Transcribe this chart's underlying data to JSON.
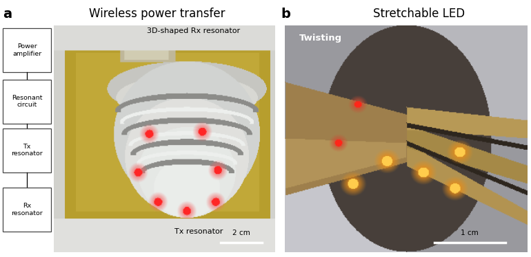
{
  "panel_a_title": "Wireless power transfer",
  "panel_b_title": "Stretchable LED",
  "panel_a_label": "a",
  "panel_b_label": "b",
  "bg_color": "#ffffff",
  "title_fontsize": 12,
  "label_fontsize": 14,
  "panel_a_annotation_3d": "3D-shaped Rx resonator",
  "panel_a_annotation_tx": "Tx resonator",
  "panel_b_annotation_twist": "Twisting",
  "scale_bar_a": "2 cm",
  "scale_bar_b": "1 cm",
  "box_labels": [
    "Power\namplifier",
    "Resonant\ncircuit",
    "Tx\nresonator",
    "Rx\nresonator"
  ],
  "figsize": [
    7.7,
    3.74
  ],
  "dpi": 100
}
